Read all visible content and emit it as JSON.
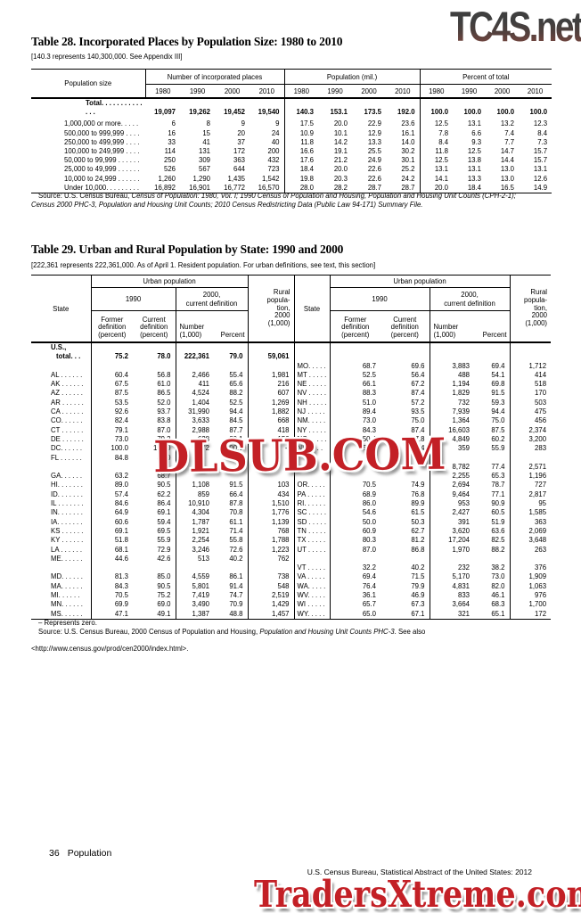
{
  "watermarks": {
    "top": "TC4S.net",
    "middle": "DLSUB.COM",
    "bottom": "TradersXtreme.com"
  },
  "table28": {
    "title": "Table 28. Incorporated Places by Population Size: 1980 to 2010",
    "note": "[140.3 represents 140,300,000. See Appendix III]",
    "stub_header": "Population size",
    "group_headers": [
      "Number of incorporated places",
      "Population (mil.)",
      "Percent of total"
    ],
    "years": [
      "1980",
      "1990",
      "2000",
      "2010"
    ],
    "rows": [
      {
        "label": "Total. . . . . . . . . . . . . .",
        "bold": true,
        "values": [
          "19,097",
          "19,262",
          "19,452",
          "19,540",
          "140.3",
          "153.1",
          "173.5",
          "192.0",
          "100.0",
          "100.0",
          "100.0",
          "100.0"
        ]
      },
      {
        "label": "1,000,000 or more. . . . .",
        "values": [
          "6",
          "8",
          "9",
          "9",
          "17.5",
          "20.0",
          "22.9",
          "23.6",
          "12.5",
          "13.1",
          "13.2",
          "12.3"
        ]
      },
      {
        "label": "500,000 to 999,999 . . . .",
        "values": [
          "16",
          "15",
          "20",
          "24",
          "10.9",
          "10.1",
          "12.9",
          "16.1",
          "7.8",
          "6.6",
          "7.4",
          "8.4"
        ]
      },
      {
        "label": "250,000 to 499,999 . . . .",
        "values": [
          "33",
          "41",
          "37",
          "40",
          "11.8",
          "14.2",
          "13.3",
          "14.0",
          "8.4",
          "9.3",
          "7.7",
          "7.3"
        ]
      },
      {
        "label": "100,000 to 249,999 . . . .",
        "values": [
          "114",
          "131",
          "172",
          "200",
          "16.6",
          "19.1",
          "25.5",
          "30.2",
          "11.8",
          "12.5",
          "14.7",
          "15.7"
        ]
      },
      {
        "label": "50,000 to 99,999 . . . . . .",
        "values": [
          "250",
          "309",
          "363",
          "432",
          "17.6",
          "21.2",
          "24.9",
          "30.1",
          "12.5",
          "13.8",
          "14.4",
          "15.7"
        ]
      },
      {
        "label": "25,000 to 49,999 . . . . . .",
        "values": [
          "526",
          "567",
          "644",
          "723",
          "18.4",
          "20.0",
          "22.6",
          "25.2",
          "13.1",
          "13.1",
          "13.0",
          "13.1"
        ]
      },
      {
        "label": "10,000 to 24,999 . . . . . .",
        "values": [
          "1,260",
          "1,290",
          "1,435",
          "1,542",
          "19.8",
          "20.3",
          "22.6",
          "24.2",
          "14.1",
          "13.3",
          "13.0",
          "12.6"
        ]
      },
      {
        "label": "Under 10,000. . . . . . . . .",
        "values": [
          "16,892",
          "16,901",
          "16,772",
          "16,570",
          "28.0",
          "28.2",
          "28.7",
          "28.7",
          "20.0",
          "18.4",
          "16.5",
          "14.9"
        ]
      }
    ],
    "source_prefix": "Source: U.S. Census Bureau, ",
    "source_italic": "Census of Population: 1980, Vol. I; 1990 Census of Population and Housing, Population and Housing Unit Counts (CPH-2-1); Census 2000 PHC-3, Population and Housing Unit Counts; 2010 Census Redistricting Data (Public Law 94-171) Summary File."
  },
  "table29": {
    "title": "Table 29. Urban and Rural Population by State: 1990 and 2000",
    "note": "[222,361 represents 222,361,000. As of April 1. Resident population. For urban definitions, see text, this section]",
    "header": {
      "state": "State",
      "urban": "Urban population",
      "y1990": "1990",
      "y2000": "2000,\ncurrent definition",
      "former": "Former\ndefinition\n(percent)",
      "current": "Current\ndefinition\n(percent)",
      "number": "Number\n(1,000)",
      "percent": "Percent",
      "rural": "Rural\npopula-\ntion,\n2000\n(1,000)"
    },
    "rows": [
      {
        "b": true,
        "l": [
          "U.S.,",
          "",
          "",
          "",
          "",
          ""
        ],
        "r": null
      },
      {
        "b": true,
        "ind": true,
        "l": [
          "total. . .",
          "75.2",
          "78.0",
          "222,361",
          "79.0",
          "59,061"
        ],
        "r": null
      },
      {
        "l": null,
        "r": [
          "MO. . . . .",
          "68.7",
          "69.6",
          "3,883",
          "69.4",
          "1,712"
        ]
      },
      {
        "l": [
          "AL . . . . . .",
          "60.4",
          "56.8",
          "2,466",
          "55.4",
          "1,981"
        ],
        "r": [
          "MT . . . . .",
          "52.5",
          "56.4",
          "488",
          "54.1",
          "414"
        ]
      },
      {
        "l": [
          "AK . . . . . .",
          "67.5",
          "61.0",
          "411",
          "65.6",
          "216"
        ],
        "r": [
          "NE . . . . .",
          "66.1",
          "67.2",
          "1,194",
          "69.8",
          "518"
        ]
      },
      {
        "l": [
          "AZ . . . . . .",
          "87.5",
          "86.5",
          "4,524",
          "88.2",
          "607"
        ],
        "r": [
          "NV . . . . .",
          "88.3",
          "87.4",
          "1,829",
          "91.5",
          "170"
        ]
      },
      {
        "l": [
          "AR . . . . . .",
          "53.5",
          "52.0",
          "1,404",
          "52.5",
          "1,269"
        ],
        "r": [
          "NH . . . . .",
          "51.0",
          "57.2",
          "732",
          "59.3",
          "503"
        ]
      },
      {
        "l": [
          "CA . . . . . .",
          "92.6",
          "93.7",
          "31,990",
          "94.4",
          "1,882"
        ],
        "r": [
          "NJ . . . . .",
          "89.4",
          "93.5",
          "7,939",
          "94.4",
          "475"
        ]
      },
      {
        "l": [
          "CO. . . . . .",
          "82.4",
          "83.8",
          "3,633",
          "84.5",
          "668"
        ],
        "r": [
          "NM. . . . .",
          "73.0",
          "75.0",
          "1,364",
          "75.0",
          "456"
        ]
      },
      {
        "l": [
          "CT . . . . . .",
          "79.1",
          "87.0",
          "2,988",
          "87.7",
          "418"
        ],
        "r": [
          "NY . . . . .",
          "84.3",
          "87.4",
          "16,603",
          "87.5",
          "2,374"
        ]
      },
      {
        "l": [
          "DE . . . . . .",
          "73.0",
          "79.2",
          "628",
          "80.1",
          "156"
        ],
        "r": [
          "NC . . . . .",
          "50.4",
          "57.8",
          "4,849",
          "60.2",
          "3,200"
        ]
      },
      {
        "l": [
          "DC. . . . . .",
          "100.0",
          "100.0",
          "572",
          "100.0",
          "–"
        ],
        "r": [
          "ND . . . .",
          "53.3",
          "53.4",
          "359",
          "55.9",
          "283"
        ]
      },
      {
        "l": [
          "FL . . . . . .",
          "84.8",
          "88.0",
          "",
          "",
          ""
        ],
        "r": null
      },
      {
        "l": null,
        "r": [
          "",
          "",
          "",
          "8,782",
          "77.4",
          "2,571"
        ]
      },
      {
        "l": [
          "GA. . . . . .",
          "63.2",
          "68.7",
          "",
          "",
          ""
        ],
        "r": [
          "",
          "",
          "",
          "2,255",
          "65.3",
          "1,196"
        ]
      },
      {
        "l": [
          "HI. . . . . . .",
          "89.0",
          "90.5",
          "1,108",
          "91.5",
          "103"
        ],
        "r": [
          "OR. . . . .",
          "70.5",
          "74.9",
          "2,694",
          "78.7",
          "727"
        ]
      },
      {
        "l": [
          "ID. . . . . . .",
          "57.4",
          "62.2",
          "859",
          "66.4",
          "434"
        ],
        "r": [
          "PA . . . . .",
          "68.9",
          "76.8",
          "9,464",
          "77.1",
          "2,817"
        ]
      },
      {
        "l": [
          "IL . . . . . . .",
          "84.6",
          "86.4",
          "10,910",
          "87.8",
          "1,510"
        ],
        "r": [
          "RI. . . . . .",
          "86.0",
          "89.9",
          "953",
          "90.9",
          "95"
        ]
      },
      {
        "l": [
          "IN. . . . . . .",
          "64.9",
          "69.1",
          "4,304",
          "70.8",
          "1,776"
        ],
        "r": [
          "SC . . . . .",
          "54.6",
          "61.5",
          "2,427",
          "60.5",
          "1,585"
        ]
      },
      {
        "l": [
          "IA. . . . . . .",
          "60.6",
          "59.4",
          "1,787",
          "61.1",
          "1,139"
        ],
        "r": [
          "SD . . . . .",
          "50.0",
          "50.3",
          "391",
          "51.9",
          "363"
        ]
      },
      {
        "l": [
          "KS . . . . . .",
          "69.1",
          "69.5",
          "1,921",
          "71.4",
          "768"
        ],
        "r": [
          "TN . . . . .",
          "60.9",
          "62.7",
          "3,620",
          "63.6",
          "2,069"
        ]
      },
      {
        "l": [
          "KY . . . . . .",
          "51.8",
          "55.9",
          "2,254",
          "55.8",
          "1,788"
        ],
        "r": [
          "TX . . . . .",
          "80.3",
          "81.2",
          "17,204",
          "82.5",
          "3,648"
        ]
      },
      {
        "l": [
          "LA . . . . . .",
          "68.1",
          "72.9",
          "3,246",
          "72.6",
          "1,223"
        ],
        "r": [
          "UT . . . . .",
          "87.0",
          "86.8",
          "1,970",
          "88.2",
          "263"
        ]
      },
      {
        "l": [
          "ME. . . . . .",
          "44.6",
          "42.6",
          "513",
          "40.2",
          "762"
        ],
        "r": null
      },
      {
        "l": null,
        "r": [
          "VT . . . . .",
          "32.2",
          "40.2",
          "232",
          "38.2",
          "376"
        ]
      },
      {
        "l": [
          "MD. . . . . .",
          "81.3",
          "85.0",
          "4,559",
          "86.1",
          "738"
        ],
        "r": [
          "VA . . . . .",
          "69.4",
          "71.5",
          "5,170",
          "73.0",
          "1,909"
        ]
      },
      {
        "l": [
          "MA. . . . . .",
          "84.3",
          "90.5",
          "5,801",
          "91.4",
          "548"
        ],
        "r": [
          "WA. . . . .",
          "76.4",
          "79.9",
          "4,831",
          "82.0",
          "1,063"
        ]
      },
      {
        "l": [
          "MI. . . . . .",
          "70.5",
          "75.2",
          "7,419",
          "74.7",
          "2,519"
        ],
        "r": [
          "WV. . . . .",
          "36.1",
          "46.9",
          "833",
          "46.1",
          "976"
        ]
      },
      {
        "l": [
          "MN. . . . . .",
          "69.9",
          "69.0",
          "3,490",
          "70.9",
          "1,429"
        ],
        "r": [
          "WI . . . . .",
          "65.7",
          "67.3",
          "3,664",
          "68.3",
          "1,700"
        ]
      },
      {
        "l": [
          "MS. . . . . .",
          "47.1",
          "49.1",
          "1,387",
          "48.8",
          "1,457"
        ],
        "r": [
          "WY. . . . .",
          "65.0",
          "67.1",
          "321",
          "65.1",
          "172"
        ]
      }
    ],
    "footnote": "– Represents zero.",
    "source_prefix": "Source: U.S. Census Bureau, 2000 Census of Population and Housing, ",
    "source_italic": "Population and Housing Unit Counts PHC-3",
    "source_suffix": ". See also",
    "source_line2": "<http://www.census.gov/prod/cen2000/index.html>."
  },
  "footer": {
    "page": "36",
    "section": "Population",
    "right": "U.S. Census Bureau, Statistical Abstract of the United States: 2012"
  }
}
